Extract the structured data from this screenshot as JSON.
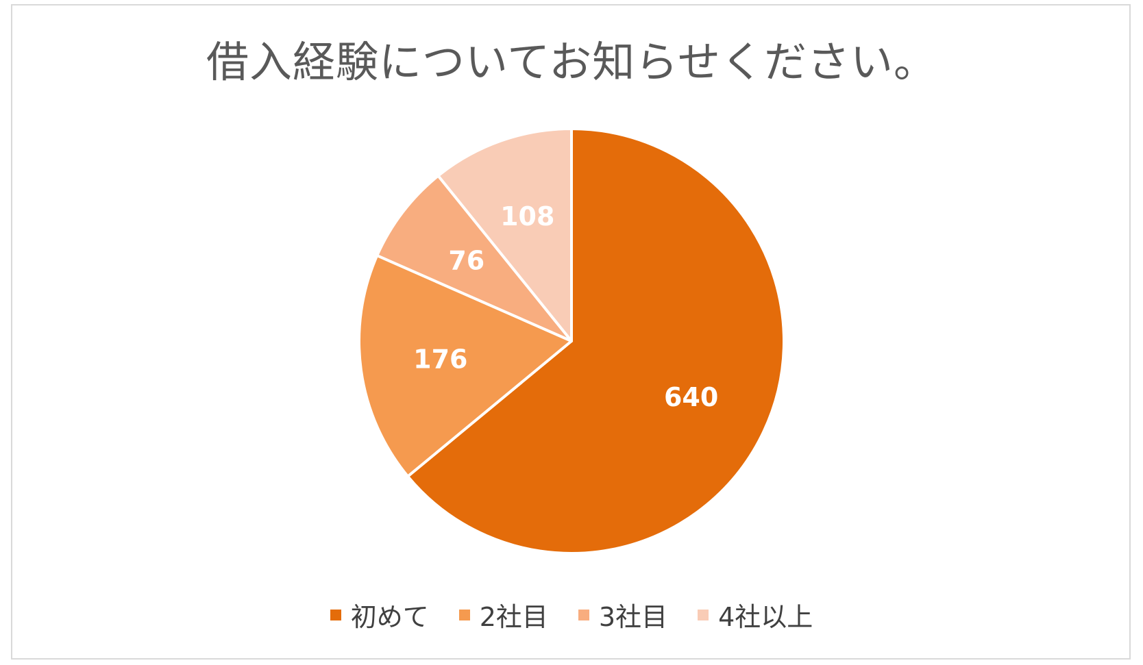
{
  "chart_data": {
    "type": "pie",
    "title": "借入経験についてお知らせください。",
    "categories": [
      "初めて",
      "2社目",
      "3社目",
      "4社以上"
    ],
    "values": [
      640,
      176,
      76,
      108
    ],
    "colors": [
      "#e46c0a",
      "#f59a4f",
      "#f8ad7f",
      "#f9ccb6"
    ],
    "data_labels": [
      "640",
      "176",
      "76",
      "108"
    ],
    "start_angle_deg": 0,
    "direction": "clockwise",
    "legend_position": "bottom"
  }
}
